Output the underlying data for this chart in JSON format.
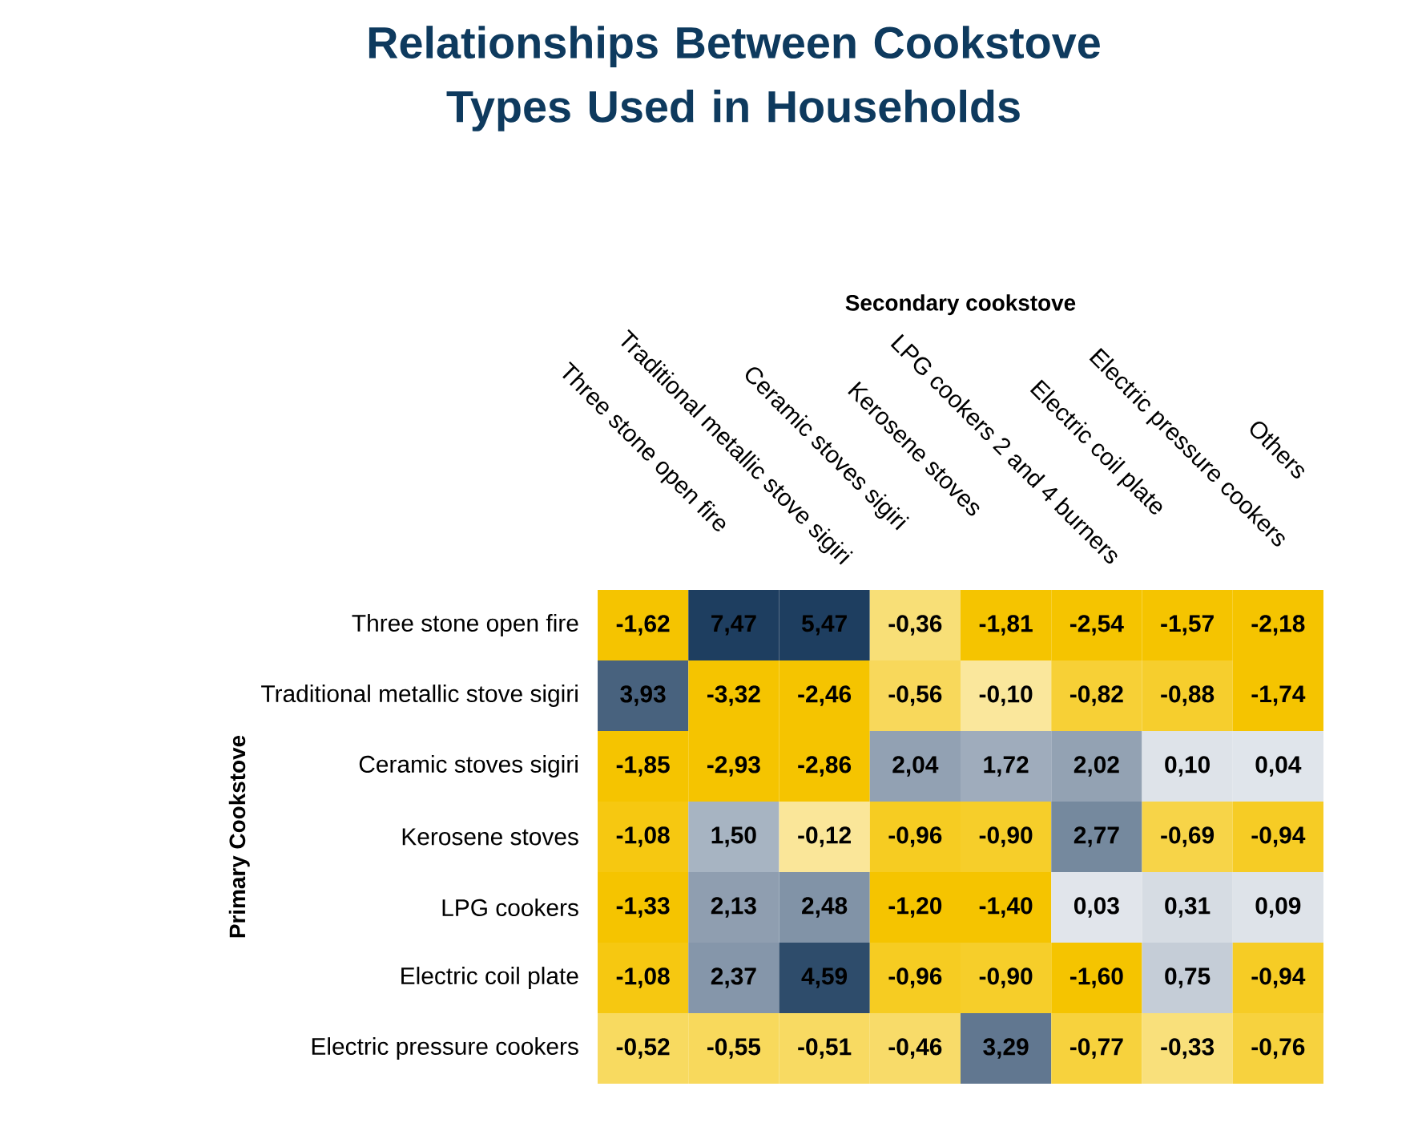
{
  "chart_data": {
    "type": "heatmap",
    "title": "Relationships Between Cookstove Types Used in Households",
    "xlabel": "Secondary cookstove",
    "ylabel": "Primary Cookstove",
    "categories": [
      "Three stone open fire",
      "Traditional metallic stove sigiri",
      "Ceramic stoves sigiri",
      "Kerosene stoves",
      "LPG cookers 2 and 4 burners",
      "Electric coil plate",
      "Electric pressure cookers",
      "Others"
    ],
    "y_categories": [
      "Three stone open fire",
      "Traditional metallic stove sigiri",
      "Ceramic stoves sigiri",
      "Kerosene stoves",
      "LPG cookers",
      "Electric coil plate",
      "Electric pressure cookers"
    ],
    "cells": [
      [
        -1.62,
        7.47,
        5.47,
        -0.36,
        -1.81,
        -2.54,
        -1.57,
        -2.18
      ],
      [
        3.93,
        -3.32,
        -2.46,
        -0.56,
        -0.1,
        -0.82,
        -0.88,
        -1.74
      ],
      [
        -1.85,
        -2.93,
        -2.86,
        2.04,
        1.72,
        2.02,
        0.1,
        0.04
      ],
      [
        -1.08,
        1.5,
        -0.12,
        -0.96,
        -0.9,
        2.77,
        -0.69,
        -0.94
      ],
      [
        -1.33,
        2.13,
        2.48,
        -1.2,
        -1.4,
        0.03,
        0.31,
        0.09
      ],
      [
        -1.08,
        2.37,
        4.59,
        -0.96,
        -0.9,
        -1.6,
        0.75,
        -0.94
      ],
      [
        -0.52,
        -0.55,
        -0.51,
        -0.46,
        3.29,
        -0.77,
        -0.33,
        -0.76
      ]
    ],
    "cell_labels": [
      [
        "-1,62",
        "7,47",
        "5,47",
        "-0,36",
        "-1,81",
        "-2,54",
        "-1,57",
        "-2,18"
      ],
      [
        "3,93",
        "-3,32",
        "-2,46",
        "-0,56",
        "-0,10",
        "-0,82",
        "-0,88",
        "-1,74"
      ],
      [
        "-1,85",
        "-2,93",
        "-2,86",
        "2,04",
        "1,72",
        "2,02",
        "0,10",
        "0,04"
      ],
      [
        "-1,08",
        "1,50",
        "-0,12",
        "-0,96",
        "-0,90",
        "2,77",
        "-0,69",
        "-0,94"
      ],
      [
        "-1,33",
        "2,13",
        "2,48",
        "-1,20",
        "-1,40",
        "0,03",
        "0,31",
        "0,09"
      ],
      [
        "-1,08",
        "2,37",
        "4,59",
        "-0,96",
        "-0,90",
        "-1,60",
        "0,75",
        "-0,94"
      ],
      [
        "-0,52",
        "-0,55",
        "-0,51",
        "-0,46",
        "3,29",
        "-0,77",
        "-0,33",
        "-0,76"
      ]
    ]
  }
}
